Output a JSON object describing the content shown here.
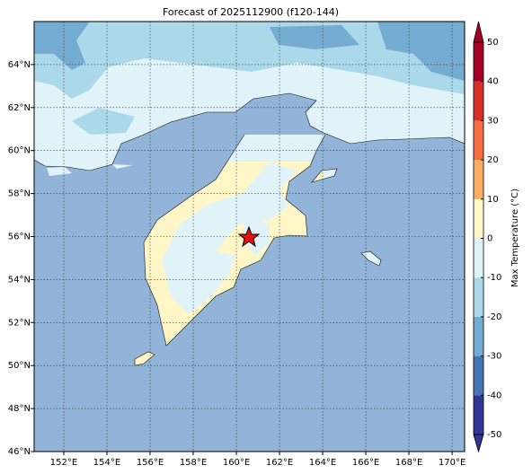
{
  "map": {
    "title": "Forecast of 2025112900 (f120-144)",
    "xlim": [
      150.625,
      170.58
    ],
    "ylim": [
      46,
      66
    ],
    "xticks": [
      {
        "value": 152,
        "label": "152°E"
      },
      {
        "value": 154,
        "label": "154°E"
      },
      {
        "value": 156,
        "label": "156°E"
      },
      {
        "value": 158,
        "label": "158°E"
      },
      {
        "value": 160,
        "label": "160°E"
      },
      {
        "value": 162,
        "label": "162°E"
      },
      {
        "value": 164,
        "label": "164°E"
      },
      {
        "value": 166,
        "label": "166°E"
      },
      {
        "value": 168,
        "label": "168°E"
      },
      {
        "value": 170,
        "label": "170°E"
      }
    ],
    "yticks": [
      {
        "value": 46,
        "label": "46°N"
      },
      {
        "value": 48,
        "label": "48°N"
      },
      {
        "value": 50,
        "label": "50°N"
      },
      {
        "value": 52,
        "label": "52°N"
      },
      {
        "value": 54,
        "label": "54°N"
      },
      {
        "value": 56,
        "label": "56°N"
      },
      {
        "value": 58,
        "label": "58°N"
      },
      {
        "value": 60,
        "label": "60°N"
      },
      {
        "value": 62,
        "label": "62°N"
      },
      {
        "value": 64,
        "label": "64°N"
      }
    ],
    "colorbar": {
      "label": "Max Temperature (°C)",
      "ticks": [
        -50,
        -40,
        -30,
        -20,
        -10,
        0,
        10,
        20,
        30,
        40,
        50
      ],
      "colors": [
        "#313695",
        "#4575b4",
        "#74add1",
        "#abd9e9",
        "#e0f3f8",
        "#fff6c8",
        "#fdae61",
        "#f46d43",
        "#d73027",
        "#a50026"
      ]
    }
  }
}
